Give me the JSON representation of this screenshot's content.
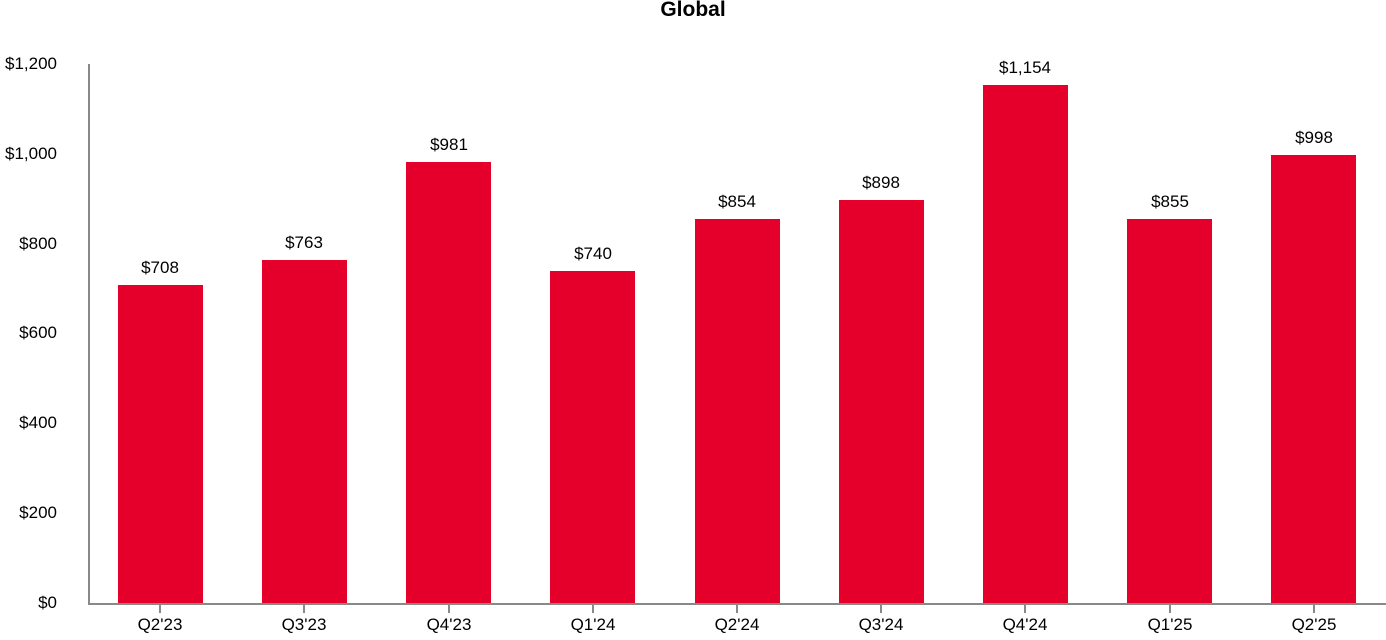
{
  "chart_data": {
    "type": "bar",
    "title": "Global",
    "categories": [
      "Q2'23",
      "Q3'23",
      "Q4'23",
      "Q1'24",
      "Q2'24",
      "Q3'24",
      "Q4'24",
      "Q1'25",
      "Q2'25"
    ],
    "values": [
      708,
      763,
      981,
      740,
      854,
      898,
      1154,
      855,
      998
    ],
    "data_labels": [
      "$708",
      "$763",
      "$981",
      "$740",
      "$854",
      "$898",
      "$1,154",
      "$855",
      "$998"
    ],
    "xlabel": "",
    "ylabel": "",
    "ylim": [
      0,
      1200
    ],
    "ytick_step": 200,
    "ytick_values": [
      0,
      200,
      400,
      600,
      800,
      1000,
      1200
    ],
    "ytick_labels": [
      "$0",
      "$200",
      "$400",
      "$600",
      "$800",
      "$1,000",
      "$1,200"
    ],
    "grid": false,
    "legend": false,
    "bar_color": "#E4002B",
    "axis_color": "#898989",
    "text_color": "#000000"
  }
}
